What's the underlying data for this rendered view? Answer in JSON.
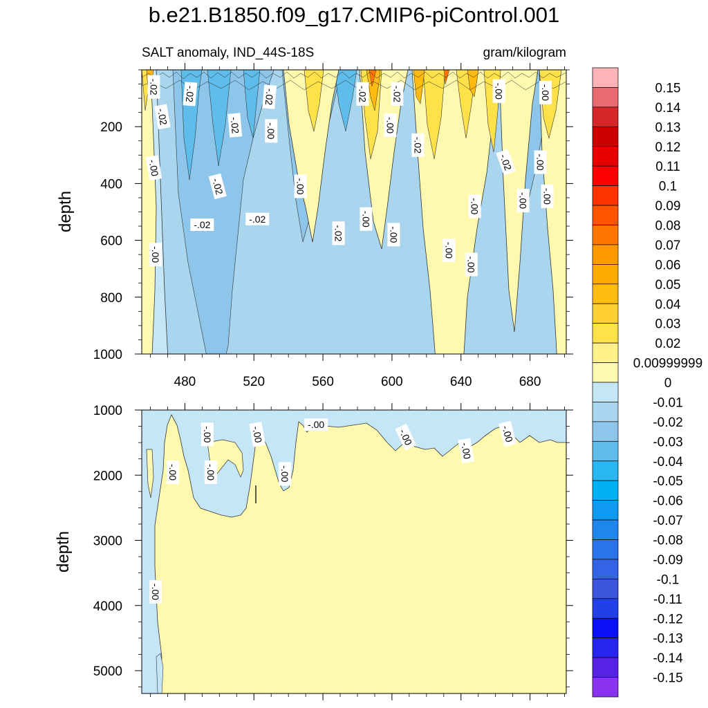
{
  "title": "b.e21.B1850.f09_g17.CMIP6-piControl.001",
  "chart_data": [
    {
      "type": "heatmap",
      "subtitle_left": "SALT anomaly, IND_44S-18S",
      "subtitle_right": "gram/kilogram",
      "ylabel": "depth",
      "xlim": [
        455,
        701
      ],
      "ylim": [
        0,
        1000
      ],
      "y_inverted": true,
      "x_ticks": [
        "480",
        "520",
        "560",
        "600",
        "640",
        "680"
      ],
      "x_tick_values": [
        480,
        520,
        560,
        600,
        640,
        680
      ],
      "y_ticks": [
        "200",
        "400",
        "600",
        "800",
        "1000"
      ],
      "y_tick_values": [
        200,
        400,
        600,
        800,
        1000
      ],
      "contour_labels": [
        {
          "text": "-.02",
          "x": 462,
          "y": 60,
          "rot": 90
        },
        {
          "text": "-.02",
          "x": 467,
          "y": 165,
          "rot": 80
        },
        {
          "text": "-.02",
          "x": 483,
          "y": 85,
          "rot": 95
        },
        {
          "text": "-.02",
          "x": 529,
          "y": 95,
          "rot": 95
        },
        {
          "text": "-.02",
          "x": 509,
          "y": 195,
          "rot": 85
        },
        {
          "text": "-.00",
          "x": 530,
          "y": 215,
          "rot": 90
        },
        {
          "text": "-.00",
          "x": 462,
          "y": 345,
          "rot": 80
        },
        {
          "text": "-.02",
          "x": 499,
          "y": 410,
          "rot": 75
        },
        {
          "text": "-.00",
          "x": 547,
          "y": 410,
          "rot": 90
        },
        {
          "text": "-.02",
          "x": 490,
          "y": 545,
          "rot": 0
        },
        {
          "text": "-.02",
          "x": 522,
          "y": 525,
          "rot": 0
        },
        {
          "text": "-.02",
          "x": 583,
          "y": 85,
          "rot": 90
        },
        {
          "text": "-.02",
          "x": 603,
          "y": 85,
          "rot": 90
        },
        {
          "text": "-.00",
          "x": 599,
          "y": 195,
          "rot": 90
        },
        {
          "text": "-.02",
          "x": 615,
          "y": 265,
          "rot": 90
        },
        {
          "text": "-.02",
          "x": 666,
          "y": 325,
          "rot": 70
        },
        {
          "text": "-.00",
          "x": 662,
          "y": 75,
          "rot": 90
        },
        {
          "text": "-.00",
          "x": 689,
          "y": 80,
          "rot": 90
        },
        {
          "text": "-.00",
          "x": 686,
          "y": 325,
          "rot": 90
        },
        {
          "text": "-.00",
          "x": 676,
          "y": 460,
          "rot": 90
        },
        {
          "text": "-.00",
          "x": 690,
          "y": 445,
          "rot": 90
        },
        {
          "text": "-.00",
          "x": 648,
          "y": 480,
          "rot": 90
        },
        {
          "text": "-.00",
          "x": 585,
          "y": 525,
          "rot": 90
        },
        {
          "text": "-.00",
          "x": 601,
          "y": 580,
          "rot": 90
        },
        {
          "text": "-.02",
          "x": 569,
          "y": 575,
          "rot": 90
        },
        {
          "text": "-.00",
          "x": 633,
          "y": 635,
          "rot": 90
        },
        {
          "text": "-.00",
          "x": 646,
          "y": 685,
          "rot": 90
        },
        {
          "text": "-.00",
          "x": 463,
          "y": 650,
          "rot": 90
        }
      ]
    },
    {
      "type": "heatmap",
      "ylabel": "depth",
      "xlim": [
        455,
        701
      ],
      "ylim": [
        1000,
        5350
      ],
      "y_inverted": true,
      "y_ticks": [
        "1000",
        "2000",
        "3000",
        "4000",
        "5000"
      ],
      "y_tick_values": [
        1000,
        2000,
        3000,
        4000,
        5000
      ],
      "contour_labels": [
        {
          "text": "-.00",
          "x": 473,
          "y": 1955,
          "rot": 90
        },
        {
          "text": "-.00",
          "x": 493,
          "y": 1375,
          "rot": 90
        },
        {
          "text": "-.00",
          "x": 495,
          "y": 1955,
          "rot": 90
        },
        {
          "text": "-.00",
          "x": 522,
          "y": 1375,
          "rot": 80
        },
        {
          "text": "-.00",
          "x": 538,
          "y": 1980,
          "rot": 90
        },
        {
          "text": "-.00",
          "x": 556,
          "y": 1225,
          "rot": 0
        },
        {
          "text": "-.00",
          "x": 608,
          "y": 1415,
          "rot": 65
        },
        {
          "text": "-.00",
          "x": 643,
          "y": 1625,
          "rot": 80
        },
        {
          "text": "-.00",
          "x": 667,
          "y": 1365,
          "rot": 75
        },
        {
          "text": "-.00",
          "x": 463,
          "y": 3790,
          "rot": 90
        }
      ]
    }
  ],
  "colorbar": {
    "labels": [
      "0.15",
      "0.14",
      "0.13",
      "0.12",
      "0.11",
      "0.1",
      "0.09",
      "0.08",
      "0.07",
      "0.06",
      "0.05",
      "0.04",
      "0.03",
      "0.02",
      "0.00999999",
      "0",
      "-0.01",
      "-0.02",
      "-0.03",
      "-0.04",
      "-0.05",
      "-0.06",
      "-0.07",
      "-0.08",
      "-0.09",
      "-0.1",
      "-0.11",
      "-0.12",
      "-0.13",
      "-0.14",
      "-0.15"
    ],
    "colors": [
      "#ffb3b8",
      "#e96a6f",
      "#d62728",
      "#cc0000",
      "#e60000",
      "#ff0000",
      "#ff3300",
      "#ff5500",
      "#ff7700",
      "#ff9900",
      "#ffaa00",
      "#ffbb11",
      "#ffd033",
      "#ffe24a",
      "#fff08a",
      "#fff9b0",
      "#c5e6f6",
      "#a9d6ee",
      "#8dc6ea",
      "#5fbdec",
      "#2ab6f0",
      "#00b0f4",
      "#0d9af0",
      "#1f86ee",
      "#2a73ea",
      "#3563e5",
      "#3d55dd",
      "#2240ea",
      "#0a10f5",
      "#2824f0",
      "#5522e6",
      "#8a33ee"
    ]
  }
}
